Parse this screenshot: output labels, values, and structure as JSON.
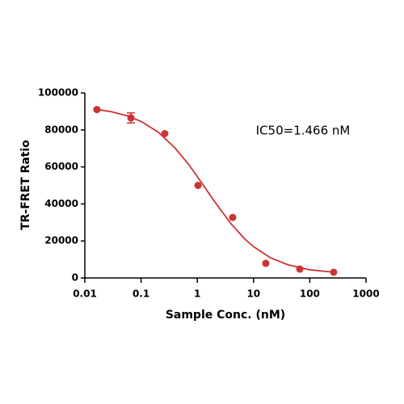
{
  "chart_data": {
    "type": "scatter",
    "xlabel": "Sample Conc. (nM)",
    "ylabel": "TR-FRET Ratio",
    "annotation": "IC50=1.466 nM",
    "xscale": "log",
    "xlim": [
      0.01,
      1000
    ],
    "xticks": [
      0.01,
      0.1,
      1,
      10,
      100,
      1000
    ],
    "ylim": [
      0,
      100000
    ],
    "yticks": [
      0,
      20000,
      40000,
      60000,
      80000,
      100000
    ],
    "series": [
      {
        "type": "scatter",
        "color": "#cc3333",
        "x": [
          0.0164,
          0.066,
          0.264,
          1.03,
          4.26,
          16.5,
          66.4,
          266
        ],
        "values": [
          91000,
          86500,
          78000,
          50000,
          32700,
          7900,
          4800,
          3100
        ],
        "errors": [
          null,
          2700,
          null,
          null,
          null,
          null,
          null,
          null
        ]
      },
      {
        "type": "line",
        "color": "#cc3333",
        "x": [
          0.0164,
          0.03,
          0.06,
          0.1,
          0.2,
          0.4,
          0.7,
          1,
          1.466,
          2,
          4,
          7,
          10,
          20,
          40,
          100,
          266
        ],
        "values": [
          91100,
          89800,
          87400,
          84600,
          78900,
          70300,
          61400,
          54800,
          47500,
          41500,
          29200,
          21000,
          16900,
          10900,
          7200,
          4400,
          3100
        ]
      }
    ]
  }
}
